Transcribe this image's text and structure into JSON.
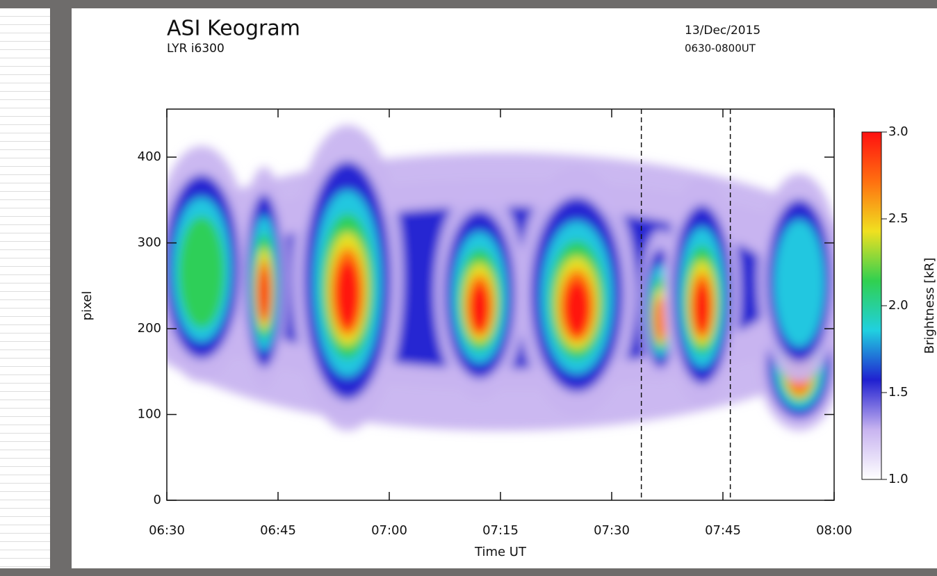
{
  "chart_data": {
    "type": "heatmap",
    "title": "ASI Keogram",
    "subtitle": "LYR i6300",
    "date": "13/Dec/2015",
    "time_range": "0630-0800UT",
    "x_label": "Time UT",
    "y_label": "pixel",
    "xlim": [
      390,
      480
    ],
    "xticks": [
      {
        "value": 390,
        "label": "06:30"
      },
      {
        "value": 405,
        "label": "06:45"
      },
      {
        "value": 420,
        "label": "07:00"
      },
      {
        "value": 435,
        "label": "07:15"
      },
      {
        "value": 450,
        "label": "07:30"
      },
      {
        "value": 465,
        "label": "07:45"
      },
      {
        "value": 480,
        "label": "08:00"
      }
    ],
    "ylim": [
      0,
      456
    ],
    "yticks": [
      0,
      100,
      200,
      300,
      400
    ],
    "vlines": [
      454,
      466
    ],
    "colorbar": {
      "label": "Brightness [kR]",
      "lim": [
        1,
        3
      ],
      "ticks": [
        {
          "value": 1,
          "label": "1.0"
        },
        {
          "value": 1.5,
          "label": "1.5"
        },
        {
          "value": 2,
          "label": "2.0"
        },
        {
          "value": 2.5,
          "label": "2.5"
        },
        {
          "value": 3,
          "label": "3.0"
        }
      ],
      "colors": [
        "#ffffff",
        "#c8b4f0",
        "#2020d0",
        "#20d0e0",
        "#30d050",
        "#f0e020",
        "#ff7010",
        "#ff1010"
      ]
    }
  }
}
